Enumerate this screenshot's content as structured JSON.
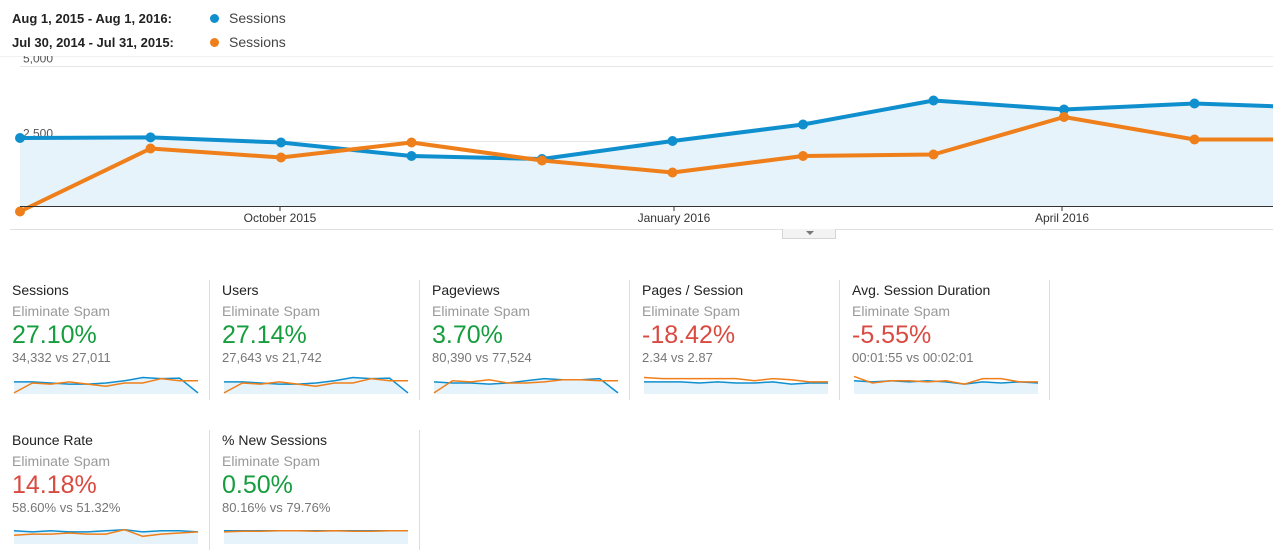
{
  "legend": [
    {
      "range": "Aug 1, 2015 - Aug 1, 2016:",
      "series": "Sessions",
      "color": "#0f8fcd"
    },
    {
      "range": "Jul 30, 2014 - Jul 31, 2015:",
      "series": "Sessions",
      "color": "#ef7f1a"
    }
  ],
  "chart_data": {
    "type": "line",
    "title": "",
    "ylim": [
      0,
      5000
    ],
    "y_ticks": [
      "5,000",
      "2,500"
    ],
    "y_tick_values": [
      5000,
      2500
    ],
    "x_tick_labels": [
      "October 2015",
      "January 2016",
      "April 2016"
    ],
    "x": [
      1,
      2,
      3,
      4,
      5,
      6,
      7,
      8,
      9,
      10,
      11
    ],
    "series": [
      {
        "name": "Sessions",
        "period": "Aug 1, 2015 - Aug 1, 2016",
        "color": "#0f8fcd",
        "fill": true,
        "values": [
          2600,
          2620,
          2450,
          2000,
          1900,
          2500,
          3050,
          3850,
          3550,
          3750,
          3600
        ]
      },
      {
        "name": "Sessions",
        "period": "Jul 30, 2014 - Jul 31, 2015",
        "color": "#ef7f1a",
        "fill": false,
        "values": [
          150,
          2250,
          1950,
          2450,
          1850,
          1450,
          2000,
          2050,
          3300,
          2550,
          2550
        ]
      }
    ],
    "grid": true
  },
  "metrics": [
    {
      "title": "Sessions",
      "segment": "Eliminate Spam",
      "change": "27.10%",
      "direction": "up",
      "compare": "34,332 vs 27,011",
      "spark": {
        "a": [
          0.55,
          0.55,
          0.5,
          0.45,
          0.45,
          0.5,
          0.6,
          0.75,
          0.7,
          0.72,
          0.05
        ],
        "b": [
          0.05,
          0.5,
          0.45,
          0.55,
          0.45,
          0.35,
          0.5,
          0.5,
          0.7,
          0.6,
          0.6
        ]
      }
    },
    {
      "title": "Users",
      "segment": "Eliminate Spam",
      "change": "27.14%",
      "direction": "up",
      "compare": "27,643 vs 21,742",
      "spark": {
        "a": [
          0.55,
          0.55,
          0.5,
          0.45,
          0.45,
          0.5,
          0.6,
          0.75,
          0.7,
          0.72,
          0.05
        ],
        "b": [
          0.05,
          0.5,
          0.45,
          0.55,
          0.45,
          0.35,
          0.5,
          0.5,
          0.7,
          0.6,
          0.6
        ]
      }
    },
    {
      "title": "Pageviews",
      "segment": "Eliminate Spam",
      "change": "3.70%",
      "direction": "up",
      "compare": "80,390 vs 77,524",
      "spark": {
        "a": [
          0.55,
          0.5,
          0.5,
          0.45,
          0.5,
          0.6,
          0.7,
          0.65,
          0.65,
          0.7,
          0.05
        ],
        "b": [
          0.05,
          0.6,
          0.55,
          0.65,
          0.5,
          0.5,
          0.55,
          0.65,
          0.65,
          0.6,
          0.6
        ]
      }
    },
    {
      "title": "Pages / Session",
      "segment": "Eliminate Spam",
      "change": "-18.42%",
      "direction": "down",
      "compare": "2.34 vs 2.87",
      "spark": {
        "a": [
          0.55,
          0.55,
          0.55,
          0.5,
          0.55,
          0.5,
          0.5,
          0.55,
          0.45,
          0.5,
          0.5
        ],
        "b": [
          0.75,
          0.7,
          0.7,
          0.7,
          0.7,
          0.7,
          0.6,
          0.7,
          0.65,
          0.55,
          0.55
        ]
      }
    },
    {
      "title": "Avg. Session Duration",
      "segment": "Eliminate Spam",
      "change": "-5.55%",
      "direction": "down",
      "compare": "00:01:55 vs 00:02:01",
      "spark": {
        "a": [
          0.6,
          0.55,
          0.6,
          0.55,
          0.6,
          0.55,
          0.45,
          0.55,
          0.5,
          0.55,
          0.5
        ],
        "b": [
          0.8,
          0.5,
          0.6,
          0.6,
          0.55,
          0.6,
          0.45,
          0.7,
          0.7,
          0.55,
          0.55
        ]
      }
    },
    {
      "title": "Bounce Rate",
      "segment": "Eliminate Spam",
      "change": "14.18%",
      "direction": "down",
      "compare": "58.60% vs 51.32%",
      "spark": {
        "a": [
          0.6,
          0.55,
          0.6,
          0.55,
          0.55,
          0.6,
          0.65,
          0.55,
          0.6,
          0.6,
          0.55
        ],
        "b": [
          0.4,
          0.45,
          0.45,
          0.5,
          0.45,
          0.45,
          0.65,
          0.35,
          0.45,
          0.5,
          0.55
        ]
      }
    },
    {
      "title": "% New Sessions",
      "segment": "Eliminate Spam",
      "change": "0.50%",
      "direction": "up",
      "compare": "80.16% vs 79.76%",
      "spark": {
        "a": [
          0.6,
          0.6,
          0.6,
          0.6,
          0.6,
          0.6,
          0.6,
          0.6,
          0.6,
          0.6,
          0.6
        ],
        "b": [
          0.55,
          0.58,
          0.58,
          0.6,
          0.6,
          0.58,
          0.6,
          0.58,
          0.58,
          0.6,
          0.6
        ]
      }
    }
  ]
}
